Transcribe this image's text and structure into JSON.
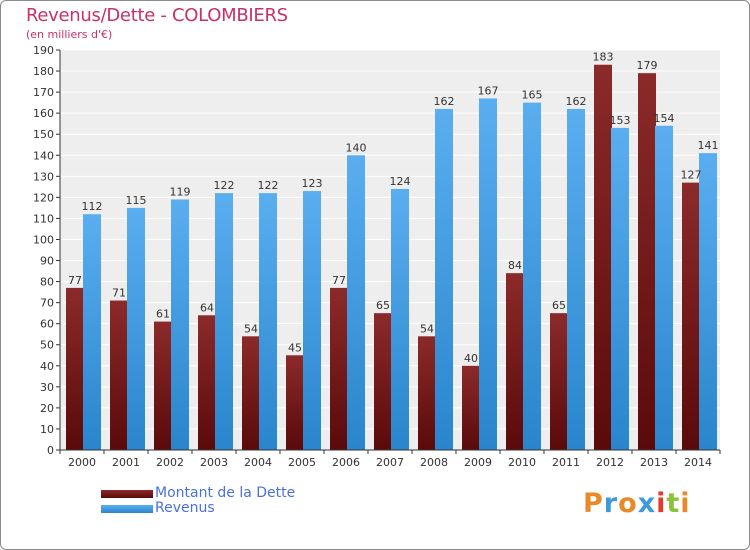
{
  "header": {
    "title": "Revenus/Dette - COLOMBIERS",
    "subtitle": "(en milliers d'€)"
  },
  "legend": {
    "items": [
      {
        "label": "Montant de la Dette",
        "color": "#7a1f1f"
      },
      {
        "label": "Revenus",
        "color": "#3a9ae0"
      }
    ]
  },
  "logo": {
    "text": "Proxiti",
    "colors": [
      "#e88a2a",
      "#3f9ad8",
      "#e88a2a",
      "#3f9ad8",
      "#e83a2a",
      "#8cc23a",
      "#e88a2a"
    ]
  },
  "chart_data": {
    "type": "bar",
    "title": "Revenus/Dette - COLOMBIERS",
    "subtitle": "(en milliers d'€)",
    "xlabel": "",
    "ylabel": "",
    "categories": [
      "2000",
      "2001",
      "2002",
      "2003",
      "2004",
      "2005",
      "2006",
      "2007",
      "2008",
      "2009",
      "2010",
      "2011",
      "2012",
      "2013",
      "2014"
    ],
    "series": [
      {
        "name": "Montant de la Dette",
        "values": [
          77,
          71,
          61,
          64,
          54,
          45,
          77,
          65,
          54,
          40,
          84,
          65,
          183,
          179,
          127
        ],
        "color": "#7a1f1f"
      },
      {
        "name": "Revenus",
        "values": [
          112,
          115,
          119,
          122,
          122,
          123,
          140,
          124,
          162,
          167,
          165,
          162,
          153,
          154,
          141
        ],
        "color": "#3a9ae0"
      }
    ],
    "ylim": [
      0,
      190
    ],
    "ytick_step": 10,
    "grid": true,
    "legend_position": "bottom-left"
  }
}
